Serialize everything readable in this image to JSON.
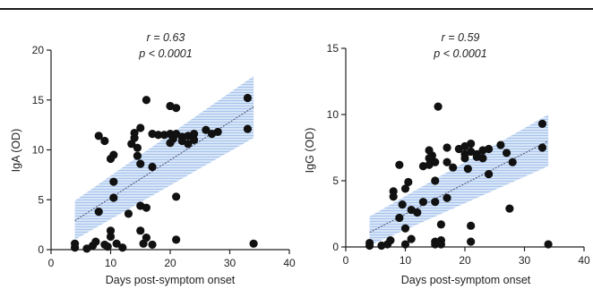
{
  "chart_data": [
    {
      "type": "scatter",
      "title": "",
      "stats": {
        "r_line": "r = 0.63",
        "p_line": "p < 0.0001"
      },
      "xlabel": "Days post-symptom onset",
      "ylabel": "IgA (OD)",
      "xlim": [
        0,
        40
      ],
      "ylim": [
        0,
        20
      ],
      "xticks": [
        "0",
        "10",
        "20",
        "30",
        "40"
      ],
      "yticks": [
        "0",
        "5",
        "10",
        "15",
        "20"
      ],
      "regression": {
        "x": [
          4,
          34
        ],
        "y": [
          2.9,
          14.3
        ],
        "ci_lower": [
          1.0,
          11.2
        ],
        "ci_upper": [
          4.9,
          17.4
        ]
      },
      "points": [
        [
          4,
          0.2
        ],
        [
          4,
          0.6
        ],
        [
          6,
          0.1
        ],
        [
          7,
          0.4
        ],
        [
          7.5,
          0.8
        ],
        [
          8,
          3.8
        ],
        [
          8,
          11.4
        ],
        [
          9,
          10.9
        ],
        [
          9,
          0.5
        ],
        [
          9.5,
          0.3
        ],
        [
          10,
          9.1
        ],
        [
          10,
          1.3
        ],
        [
          10,
          1.9
        ],
        [
          10.5,
          9.5
        ],
        [
          10.5,
          6.8
        ],
        [
          10.5,
          5.2
        ],
        [
          11,
          0.6
        ],
        [
          12,
          0.2
        ],
        [
          13,
          3.6
        ],
        [
          13.5,
          10.6
        ],
        [
          14,
          11.2
        ],
        [
          14,
          11.7
        ],
        [
          14.5,
          10.2
        ],
        [
          14.5,
          9.4
        ],
        [
          15,
          12.2
        ],
        [
          15,
          8.6
        ],
        [
          15,
          4.4
        ],
        [
          15,
          1.9
        ],
        [
          15.5,
          0.6
        ],
        [
          16,
          15
        ],
        [
          16,
          1.2
        ],
        [
          16,
          4.2
        ],
        [
          17,
          11.6
        ],
        [
          17,
          8.3
        ],
        [
          17,
          0.5
        ],
        [
          18,
          11.5
        ],
        [
          19,
          11.5
        ],
        [
          20,
          14.4
        ],
        [
          20,
          11.6
        ],
        [
          20,
          10.7
        ],
        [
          20.5,
          11.1
        ],
        [
          21,
          14.2
        ],
        [
          21,
          11.6
        ],
        [
          21,
          5.3
        ],
        [
          21,
          1.0
        ],
        [
          22,
          11.3
        ],
        [
          22,
          10.9
        ],
        [
          23,
          11.4
        ],
        [
          23,
          10.6
        ],
        [
          24,
          11.6
        ],
        [
          24,
          11.0
        ],
        [
          26,
          12.0
        ],
        [
          27,
          11.6
        ],
        [
          28,
          11.8
        ],
        [
          33,
          15.2
        ],
        [
          33,
          12.1
        ],
        [
          34,
          0.6
        ]
      ]
    },
    {
      "type": "scatter",
      "title": "",
      "stats": {
        "r_line": "r = 0.59",
        "p_line": "p < 0.0001"
      },
      "xlabel": "Days post-symptom onset",
      "ylabel": "IgG (OD)",
      "xlim": [
        0,
        40
      ],
      "ylim": [
        0,
        15
      ],
      "xticks": [
        "0",
        "10",
        "20",
        "30",
        "40"
      ],
      "yticks": [
        "0",
        "5",
        "10",
        "15"
      ],
      "regression": {
        "x": [
          4,
          34
        ],
        "y": [
          1.1,
          8.0
        ],
        "ci_lower": [
          0.1,
          6.1
        ],
        "ci_upper": [
          2.3,
          10.0
        ]
      },
      "points": [
        [
          4,
          0.1
        ],
        [
          4,
          0.3
        ],
        [
          6,
          0.1
        ],
        [
          7,
          0.2
        ],
        [
          7.5,
          0.5
        ],
        [
          8,
          4.2
        ],
        [
          8,
          3.8
        ],
        [
          9,
          6.2
        ],
        [
          9,
          2.2
        ],
        [
          9.5,
          3.2
        ],
        [
          10,
          0.2
        ],
        [
          10,
          1.4
        ],
        [
          10,
          4.4
        ],
        [
          10.5,
          4.9
        ],
        [
          11,
          0.6
        ],
        [
          11,
          2.8
        ],
        [
          12,
          2.6
        ],
        [
          13,
          3.4
        ],
        [
          13,
          6.1
        ],
        [
          14,
          6.2
        ],
        [
          14,
          6.7
        ],
        [
          14,
          7.3
        ],
        [
          14.5,
          6.9
        ],
        [
          15,
          6.4
        ],
        [
          15,
          5.0
        ],
        [
          15,
          3.4
        ],
        [
          15,
          0.4
        ],
        [
          15,
          0.2
        ],
        [
          15.5,
          10.6
        ],
        [
          16,
          0.5
        ],
        [
          16,
          0.2
        ],
        [
          16,
          1.7
        ],
        [
          17,
          7.5
        ],
        [
          17,
          6.4
        ],
        [
          17,
          3.7
        ],
        [
          18,
          6.0
        ],
        [
          19,
          7.4
        ],
        [
          20,
          7.6
        ],
        [
          20,
          7.0
        ],
        [
          20,
          6.7
        ],
        [
          20.5,
          5.9
        ],
        [
          21,
          7.8
        ],
        [
          21,
          7.2
        ],
        [
          21,
          1.6
        ],
        [
          21,
          0.4
        ],
        [
          22,
          7.0
        ],
        [
          22,
          6.8
        ],
        [
          23,
          7.3
        ],
        [
          23,
          6.7
        ],
        [
          24,
          7.4
        ],
        [
          24,
          5.5
        ],
        [
          26,
          7.7
        ],
        [
          27,
          7.1
        ],
        [
          27.5,
          2.9
        ],
        [
          28,
          6.4
        ],
        [
          33,
          9.3
        ],
        [
          33,
          7.5
        ],
        [
          34,
          0.2
        ]
      ]
    }
  ],
  "colors": {
    "point": "#111111",
    "ci_band": "#cfe0f6",
    "ci_hatch": "#8fb2e6",
    "fit_line": "#4a4f73",
    "axis": "#222222"
  }
}
